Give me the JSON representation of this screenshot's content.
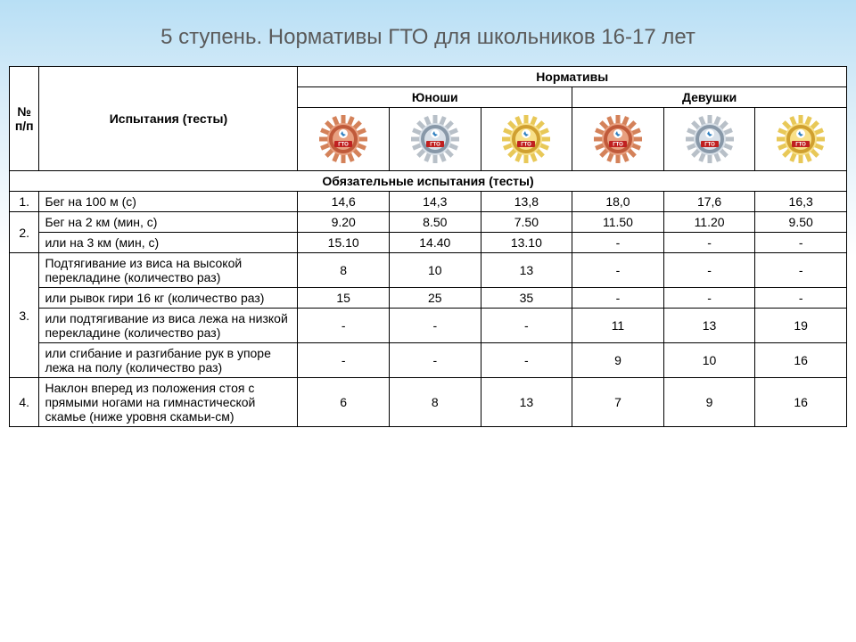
{
  "title": "5 ступень. Нормативы ГТО для школьников 16-17 лет",
  "headers": {
    "num": "№ п/п",
    "tests": "Испытания (тесты)",
    "norms": "Нормативы",
    "boys": "Юноши",
    "girls": "Девушки"
  },
  "badge_colors": {
    "bronze": {
      "outer": "#d4825a",
      "inner": "#c05a3a",
      "accent": "#e8a080"
    },
    "silver": {
      "outer": "#b8c0c8",
      "inner": "#8898a8",
      "accent": "#d8e0e8"
    },
    "gold": {
      "outer": "#e8c858",
      "inner": "#d0a030",
      "accent": "#f8e088"
    }
  },
  "badge_order": [
    "bronze",
    "silver",
    "gold",
    "bronze",
    "silver",
    "gold"
  ],
  "section_label": "Обязательные испытания (тесты)",
  "rows": [
    {
      "num": "1.",
      "span": 1,
      "tests": [
        "Бег на 100 м (с)"
      ],
      "vals": [
        [
          "14,6",
          "14,3",
          "13,8",
          "18,0",
          "17,6",
          "16,3"
        ]
      ]
    },
    {
      "num": "2.",
      "span": 2,
      "tests": [
        "Бег на 2 км  (мин, с)",
        "или на 3 км (мин, с)"
      ],
      "vals": [
        [
          "9.20",
          "8.50",
          "7.50",
          "11.50",
          "11.20",
          "9.50"
        ],
        [
          "15.10",
          "14.40",
          "13.10",
          "-",
          "-",
          "-"
        ]
      ]
    },
    {
      "num": "3.",
      "span": 4,
      "tests": [
        "Подтягивание из виса на высокой перекладине (количество раз)",
        "или рывок гири 16 кг (количество раз)",
        "или подтягивание из виса лежа на низкой перекладине (количество раз)",
        "или сгибание и разгибание рук в упоре лежа на полу (количество раз)"
      ],
      "vals": [
        [
          "8",
          "10",
          "13",
          "-",
          "-",
          "-"
        ],
        [
          "15",
          "25",
          "35",
          "-",
          "-",
          "-"
        ],
        [
          "-",
          "-",
          "-",
          "11",
          "13",
          "19"
        ],
        [
          "-",
          "-",
          "-",
          "9",
          "10",
          "16"
        ]
      ]
    },
    {
      "num": "4.",
      "span": 1,
      "tests": [
        "Наклон вперед из положения стоя с прямыми ногами на гимнастической скамье (ниже уровня скамьи-см)"
      ],
      "vals": [
        [
          "6",
          "8",
          "13",
          "7",
          "9",
          "16"
        ]
      ]
    }
  ]
}
